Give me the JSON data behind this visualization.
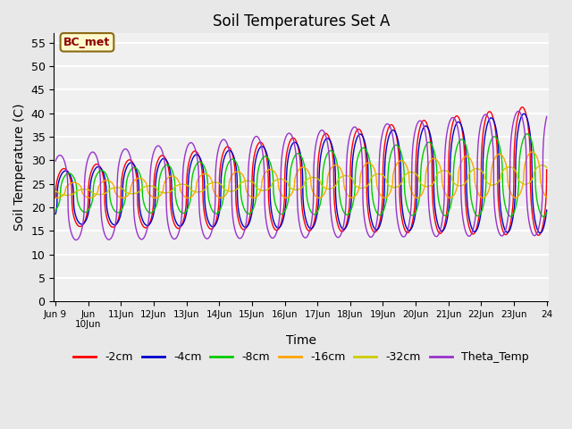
{
  "title": "Soil Temperatures Set A",
  "xlabel": "Time",
  "ylabel": "Soil Temperature (C)",
  "ylim": [
    0,
    57
  ],
  "yticks": [
    0,
    5,
    10,
    15,
    20,
    25,
    30,
    35,
    40,
    45,
    50,
    55
  ],
  "background_color": "#e8e8e8",
  "plot_background": "#f0f0f0",
  "annotation_text": "BC_met",
  "annotation_color": "#8b0000",
  "annotation_bg": "#fffacd",
  "xstart": 9.0,
  "xend": 24.0,
  "n_points": 2000
}
